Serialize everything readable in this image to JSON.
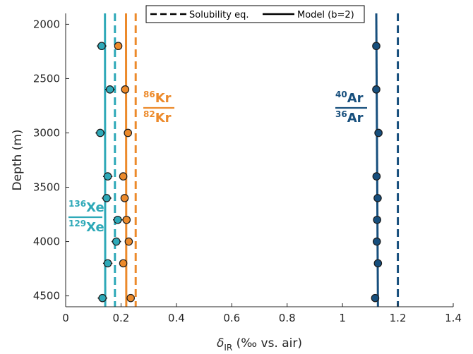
{
  "colors": {
    "xe": "#2ea9b8",
    "kr": "#ec8a2b",
    "ar": "#174f7d",
    "axis": "#262626"
  },
  "chart_data": {
    "type": "scatter",
    "xlabel": {
      "symbol": "δ",
      "subscript": "IR",
      "rest": " (‰ vs. air)"
    },
    "ylabel": "Depth (m)",
    "xlim": [
      0,
      1.4
    ],
    "ylim": [
      1900,
      4600
    ],
    "y_reversed": true,
    "xticks": [
      0,
      0.2,
      0.4,
      0.6,
      0.8,
      1,
      1.2,
      1.4
    ],
    "xtick_labels": [
      "0",
      "0.2",
      "0.4",
      "0.6",
      "0.8",
      "1",
      "1.2",
      "1.4"
    ],
    "yticks": [
      2000,
      2500,
      3000,
      3500,
      4000,
      4500
    ],
    "ytick_labels": [
      "2000",
      "2500",
      "3000",
      "3500",
      "4000",
      "4500"
    ],
    "legend": {
      "position": "top",
      "entries": [
        {
          "style": "dashed",
          "label": "Solubility eq."
        },
        {
          "style": "solid",
          "label": "Model (b=2)"
        }
      ]
    },
    "series": [
      {
        "key": "xe",
        "label": {
          "num_mass": "136",
          "num_el": "Xe",
          "den_mass": "129",
          "den_el": "Xe"
        },
        "model": [
          [
            0.142,
            1900
          ],
          [
            0.143,
            4600
          ]
        ],
        "solubility_x": 0.178,
        "points": [
          {
            "depth": 2200,
            "x": 0.13,
            "err": 0.017
          },
          {
            "depth": 2600,
            "x": 0.16,
            "err": 0.017
          },
          {
            "depth": 3000,
            "x": 0.125,
            "err": 0.017
          },
          {
            "depth": 3400,
            "x": 0.152,
            "err": 0.017
          },
          {
            "depth": 3600,
            "x": 0.148,
            "err": 0.017
          },
          {
            "depth": 3800,
            "x": 0.188,
            "err": 0.017
          },
          {
            "depth": 4000,
            "x": 0.183,
            "err": 0.017
          },
          {
            "depth": 4200,
            "x": 0.152,
            "err": 0.017
          },
          {
            "depth": 4520,
            "x": 0.133,
            "err": 0.017
          }
        ]
      },
      {
        "key": "kr",
        "label": {
          "num_mass": "86",
          "num_el": "Kr",
          "den_mass": "82",
          "den_el": "Kr"
        },
        "model": [
          [
            0.218,
            1900
          ],
          [
            0.219,
            4600
          ]
        ],
        "solubility_x": 0.253,
        "points": [
          {
            "depth": 2200,
            "x": 0.19,
            "err": 0
          },
          {
            "depth": 2600,
            "x": 0.215,
            "err": 0
          },
          {
            "depth": 3000,
            "x": 0.225,
            "err": 0
          },
          {
            "depth": 3400,
            "x": 0.208,
            "err": 0
          },
          {
            "depth": 3600,
            "x": 0.213,
            "err": 0
          },
          {
            "depth": 3800,
            "x": 0.22,
            "err": 0
          },
          {
            "depth": 4000,
            "x": 0.228,
            "err": 0
          },
          {
            "depth": 4200,
            "x": 0.208,
            "err": 0
          },
          {
            "depth": 4520,
            "x": 0.235,
            "err": 0
          }
        ]
      },
      {
        "key": "ar",
        "label": {
          "num_mass": "40",
          "num_el": "Ar",
          "den_mass": "36",
          "den_el": "Ar"
        },
        "model": [
          [
            1.122,
            1900
          ],
          [
            1.128,
            4600
          ]
        ],
        "solubility_x": 1.2,
        "points": [
          {
            "depth": 2200,
            "x": 1.122,
            "err": 0
          },
          {
            "depth": 2600,
            "x": 1.122,
            "err": 0
          },
          {
            "depth": 3000,
            "x": 1.13,
            "err": 0
          },
          {
            "depth": 3400,
            "x": 1.123,
            "err": 0
          },
          {
            "depth": 3600,
            "x": 1.127,
            "err": 0
          },
          {
            "depth": 3800,
            "x": 1.125,
            "err": 0
          },
          {
            "depth": 4000,
            "x": 1.124,
            "err": 0
          },
          {
            "depth": 4200,
            "x": 1.128,
            "err": 0
          },
          {
            "depth": 4520,
            "x": 1.118,
            "err": 0
          }
        ]
      }
    ]
  }
}
